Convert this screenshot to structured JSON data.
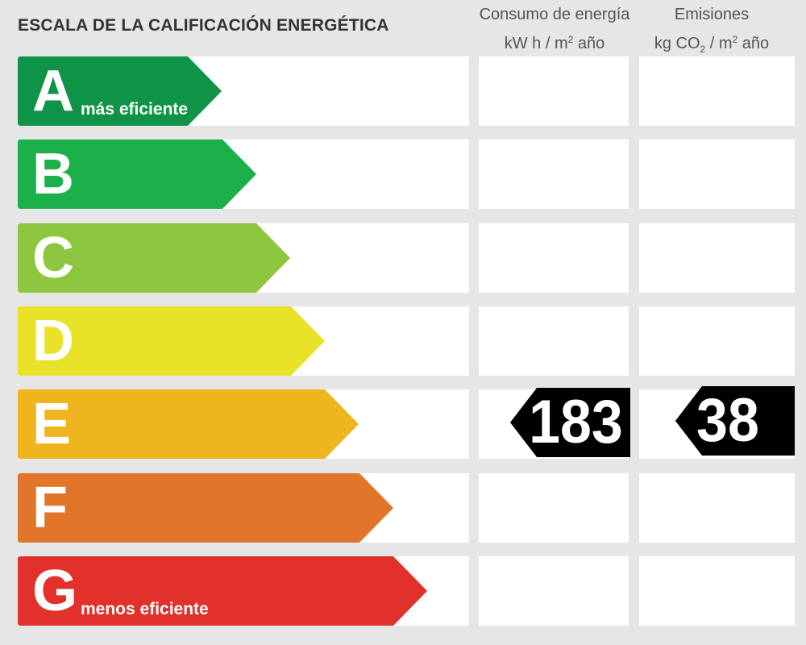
{
  "title": "ESCALA DE LA CALIFICACIÓN ENERGÉTICA",
  "columns": {
    "energy": {
      "line1": "Consumo de energía",
      "line2_pre": "kW h  / m",
      "line2_sup": "2",
      "line2_post": " año"
    },
    "emissions": {
      "line1": "Emisiones",
      "line2_pre": "kg CO",
      "line2_sub": "2",
      "line2_mid": "  / m",
      "line2_sup": "2",
      "line2_post": " año"
    }
  },
  "ratings": [
    {
      "letter": "A",
      "sublabel": "más eficiente",
      "color": "#0f9447"
    },
    {
      "letter": "B",
      "sublabel": "",
      "color": "#1cb04b"
    },
    {
      "letter": "C",
      "sublabel": "",
      "color": "#8dc63f"
    },
    {
      "letter": "D",
      "sublabel": "",
      "color": "#e8e328"
    },
    {
      "letter": "E",
      "sublabel": "",
      "color": "#efb51f"
    },
    {
      "letter": "F",
      "sublabel": "",
      "color": "#e1762a"
    },
    {
      "letter": "G",
      "sublabel": "menos eficiente",
      "color": "#e2312a"
    }
  ],
  "result": {
    "rating": "E",
    "energy_value": "183",
    "emissions_value": "38"
  }
}
